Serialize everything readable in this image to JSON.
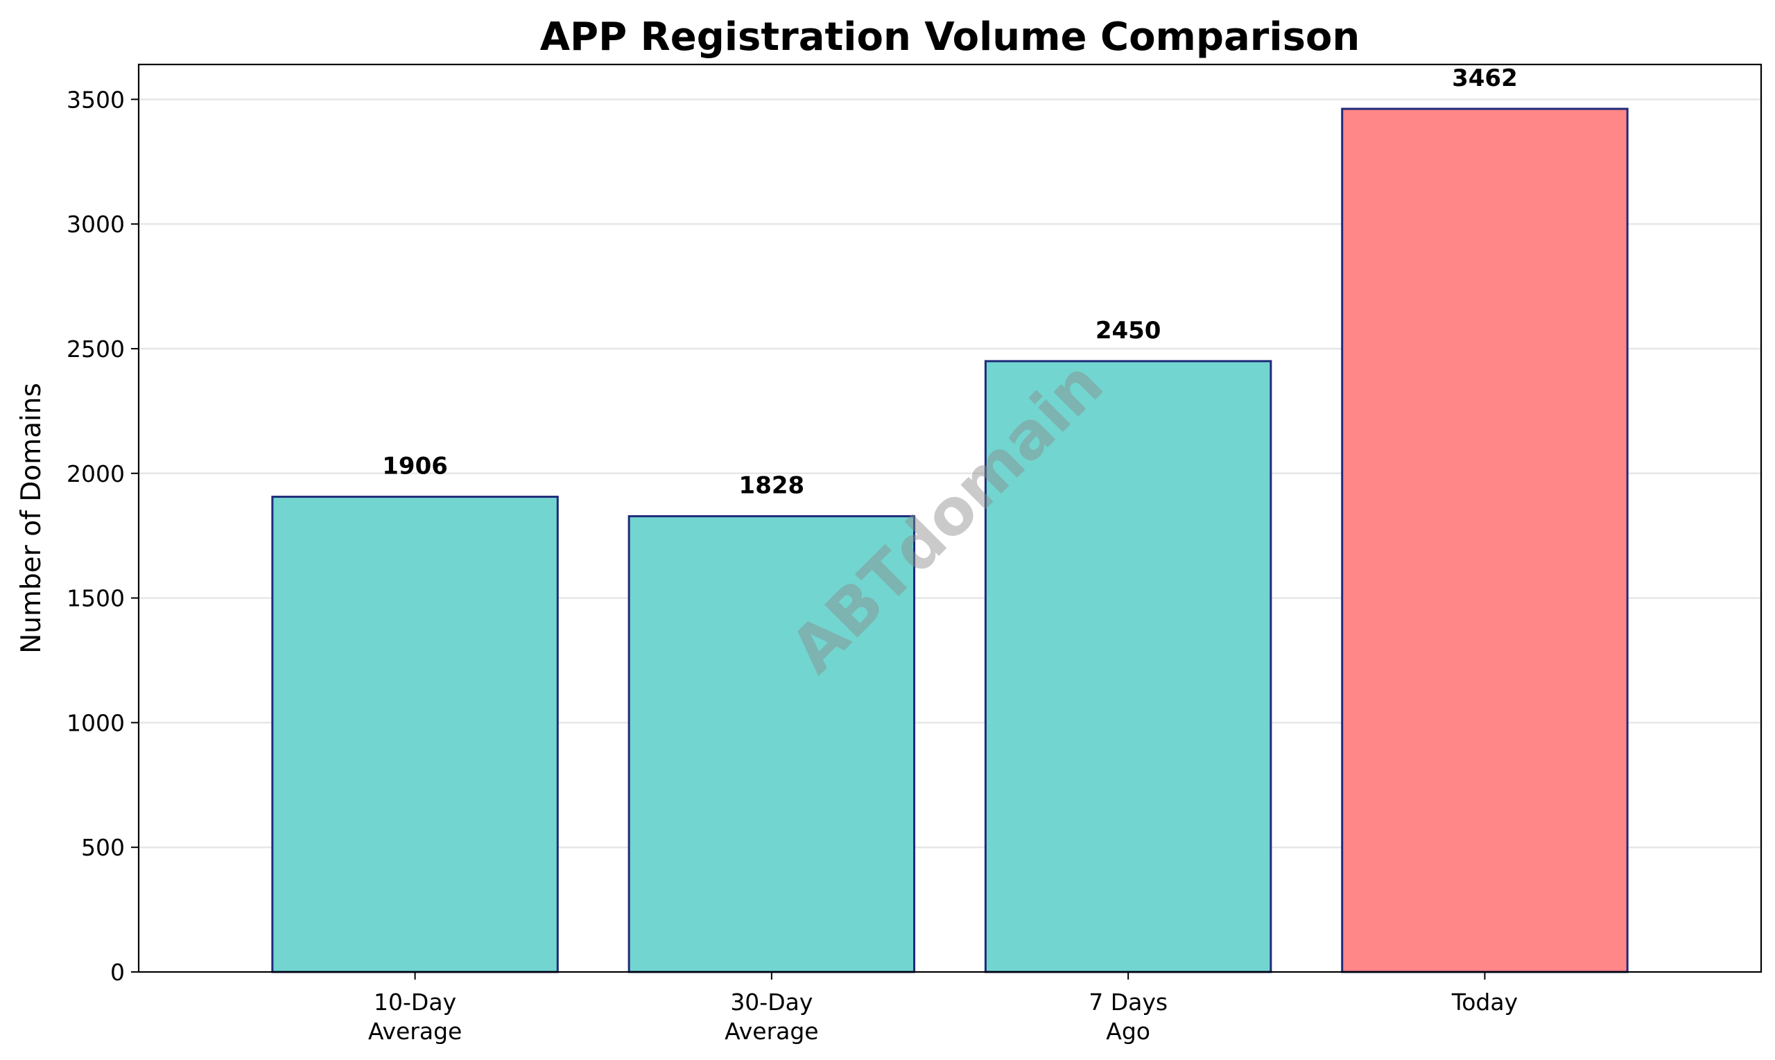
{
  "chart_data": {
    "type": "bar",
    "title": "APP Registration Volume Comparison",
    "xlabel": "",
    "ylabel": "Number of Domains",
    "categories": [
      [
        "10-Day",
        "Average"
      ],
      [
        "30-Day",
        "Average"
      ],
      [
        "7 Days",
        "Ago"
      ],
      [
        "Today"
      ]
    ],
    "values": [
      1906,
      1828,
      2450,
      3462
    ],
    "value_labels": [
      "1906",
      "1828",
      "2450",
      "3462"
    ],
    "bar_colors": [
      "#72d5cf",
      "#72d5cf",
      "#72d5cf",
      "#ff8787"
    ],
    "bar_edge_color": "#1f2a7a",
    "ylim": [
      0,
      3640
    ],
    "yticks": [
      0,
      500,
      1000,
      1500,
      2000,
      2500,
      3000,
      3500
    ],
    "ytick_labels": [
      "0",
      "500",
      "1000",
      "1500",
      "2000",
      "2500",
      "3000",
      "3500"
    ],
    "grid": "horizontal",
    "grid_color": "#e6e6e6",
    "watermark": "ABTdomain"
  }
}
